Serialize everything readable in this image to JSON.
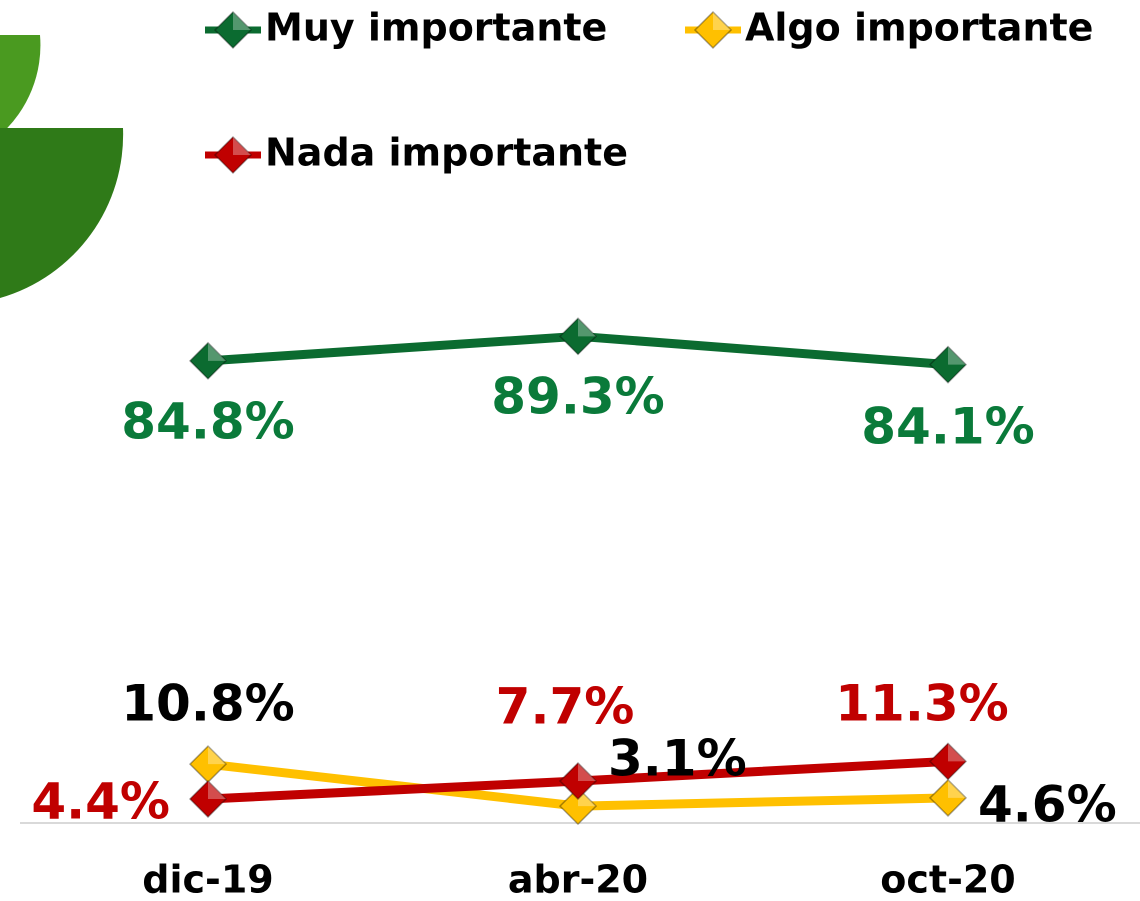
{
  "chart_data": {
    "type": "line",
    "categories": [
      "dic-19",
      "abr-20",
      "oct-20"
    ],
    "series": [
      {
        "name": "Muy importante",
        "color": "#0b6b30",
        "label_color": "#0a7a3a",
        "values": [
          84.8,
          89.3,
          84.1
        ],
        "value_labels": [
          "84.8%",
          "89.3%",
          "84.1%"
        ]
      },
      {
        "name": "Algo importante",
        "color": "#ffc000",
        "label_color": "#000000",
        "values": [
          10.8,
          3.1,
          4.6
        ],
        "value_labels": [
          "10.8%",
          "3.1%",
          "4.6%"
        ]
      },
      {
        "name": "Nada importante",
        "color": "#c00000",
        "label_color": "#c00000",
        "values": [
          4.4,
          7.7,
          11.3
        ],
        "value_labels": [
          "4.4%",
          "7.7%",
          "11.3%"
        ]
      }
    ],
    "ylim": [
      0,
      100
    ],
    "legend": "top"
  }
}
